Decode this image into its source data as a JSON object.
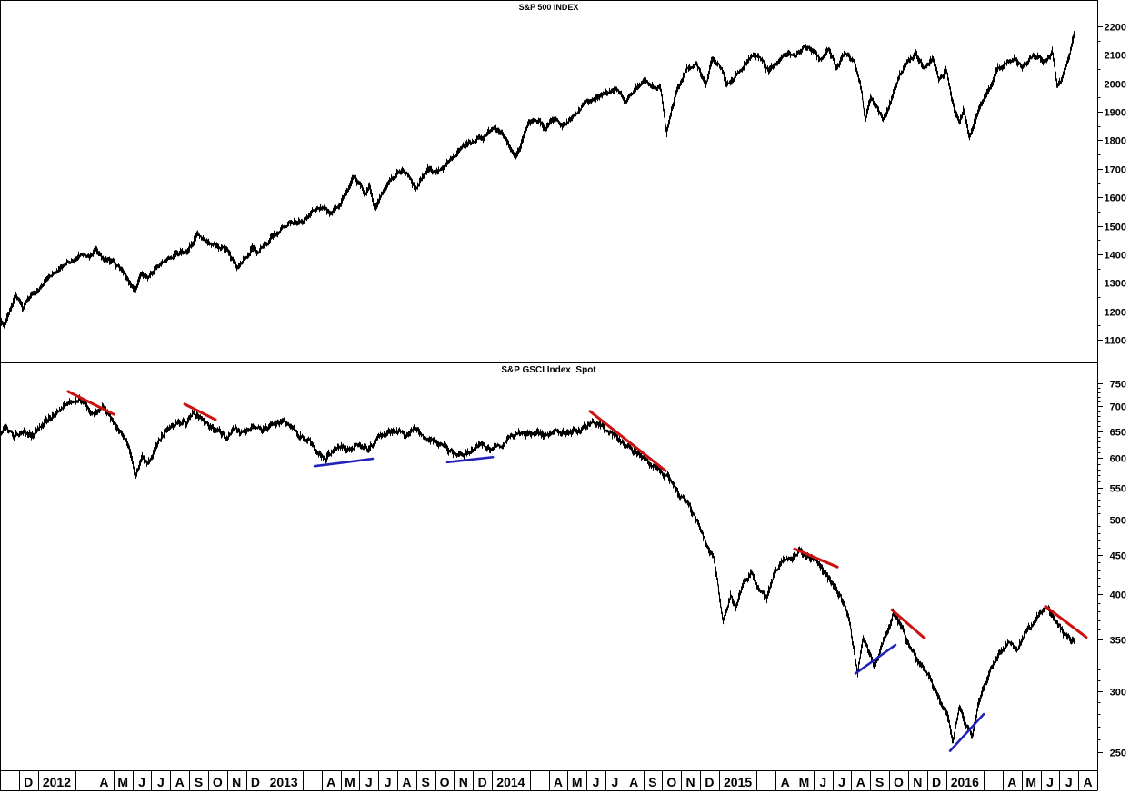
{
  "meta": {
    "background": "#ffffff",
    "axis_color": "#000000",
    "bar_color": "#000000",
    "red_trendline_color": "#cc1111",
    "blue_trendline_color": "#2222bb"
  },
  "x_axis": {
    "description": "Monthly cells from late Nov 2011 to Aug 2016; year label replaces Jan-Feb, following blank cell is Mar",
    "cells": [
      [
        "",
        1
      ],
      [
        "D",
        1
      ],
      [
        "2012",
        2
      ],
      [
        "",
        1
      ],
      [
        "A",
        1
      ],
      [
        "M",
        1
      ],
      [
        "J",
        1
      ],
      [
        "J",
        1
      ],
      [
        "A",
        1
      ],
      [
        "S",
        1
      ],
      [
        "O",
        1
      ],
      [
        "N",
        1
      ],
      [
        "D",
        1
      ],
      [
        "2013",
        2
      ],
      [
        "",
        1
      ],
      [
        "A",
        1
      ],
      [
        "M",
        1
      ],
      [
        "J",
        1
      ],
      [
        "J",
        1
      ],
      [
        "A",
        1
      ],
      [
        "S",
        1
      ],
      [
        "O",
        1
      ],
      [
        "N",
        1
      ],
      [
        "D",
        1
      ],
      [
        "2014",
        2
      ],
      [
        "",
        1
      ],
      [
        "A",
        1
      ],
      [
        "M",
        1
      ],
      [
        "J",
        1
      ],
      [
        "J",
        1
      ],
      [
        "A",
        1
      ],
      [
        "S",
        1
      ],
      [
        "O",
        1
      ],
      [
        "N",
        1
      ],
      [
        "D",
        1
      ],
      [
        "2015",
        2
      ],
      [
        "",
        1
      ],
      [
        "A",
        1
      ],
      [
        "M",
        1
      ],
      [
        "J",
        1
      ],
      [
        "J",
        1
      ],
      [
        "A",
        1
      ],
      [
        "S",
        1
      ],
      [
        "O",
        1
      ],
      [
        "N",
        1
      ],
      [
        "D",
        1
      ],
      [
        "2016",
        2
      ],
      [
        "",
        1
      ],
      [
        "A",
        1
      ],
      [
        "M",
        1
      ],
      [
        "J",
        1
      ],
      [
        "J",
        1
      ],
      [
        "A",
        1
      ]
    ]
  },
  "chart_data": [
    {
      "type": "line",
      "style": "daily hi-lo price bars",
      "title": "S&P 500 INDEX",
      "x_unit": "months since 1 Nov 2011 (fractional)",
      "y_scale": "linear",
      "ylim": [
        1090,
        2255
      ],
      "y_ticks": [
        2200,
        2100,
        2000,
        1900,
        1800,
        1700,
        1600,
        1500,
        1400,
        1300,
        1200,
        1100
      ],
      "y_minor_step": 50,
      "legend": "none",
      "grid": false,
      "anchors": [
        [
          0,
          1168
        ],
        [
          0.2,
          1150
        ],
        [
          0.8,
          1248
        ],
        [
          1.2,
          1210
        ],
        [
          1.6,
          1248
        ],
        [
          2,
          1278
        ],
        [
          2.5,
          1315
        ],
        [
          3,
          1345
        ],
        [
          3.5,
          1368
        ],
        [
          4.4,
          1404
        ],
        [
          4.7,
          1392
        ],
        [
          5.05,
          1419
        ],
        [
          5.5,
          1385
        ],
        [
          6,
          1372
        ],
        [
          6.5,
          1332
        ],
        [
          7.1,
          1268
        ],
        [
          7.5,
          1330
        ],
        [
          7.8,
          1316
        ],
        [
          8.3,
          1358
        ],
        [
          8.8,
          1380
        ],
        [
          9.3,
          1402
        ],
        [
          9.9,
          1412
        ],
        [
          10.4,
          1465
        ],
        [
          10.9,
          1448
        ],
        [
          11.5,
          1432
        ],
        [
          12,
          1412
        ],
        [
          12.5,
          1354
        ],
        [
          13,
          1398
        ],
        [
          13.3,
          1420
        ],
        [
          13.6,
          1402
        ],
        [
          14,
          1432
        ],
        [
          14.5,
          1470
        ],
        [
          15,
          1498
        ],
        [
          15.5,
          1512
        ],
        [
          16,
          1522
        ],
        [
          16.5,
          1552
        ],
        [
          17.1,
          1565
        ],
        [
          17.4,
          1542
        ],
        [
          18,
          1588
        ],
        [
          18.7,
          1665
        ],
        [
          19.3,
          1612
        ],
        [
          19.5,
          1640
        ],
        [
          19.8,
          1565
        ],
        [
          20.5,
          1650
        ],
        [
          21.1,
          1697
        ],
        [
          21.5,
          1682
        ],
        [
          22,
          1632
        ],
        [
          22.6,
          1705
        ],
        [
          23,
          1680
        ],
        [
          23.5,
          1698
        ],
        [
          24,
          1745
        ],
        [
          24.5,
          1780
        ],
        [
          25,
          1798
        ],
        [
          25.5,
          1808
        ],
        [
          26.1,
          1846
        ],
        [
          26.5,
          1820
        ],
        [
          27.2,
          1742
        ],
        [
          27.9,
          1854
        ],
        [
          28.5,
          1872
        ],
        [
          28.8,
          1842
        ],
        [
          29.3,
          1880
        ],
        [
          29.7,
          1856
        ],
        [
          30.3,
          1884
        ],
        [
          30.8,
          1920
        ],
        [
          31.5,
          1950
        ],
        [
          32.1,
          1968
        ],
        [
          32.5,
          1978
        ],
        [
          33.1,
          1932
        ],
        [
          33.7,
          1988
        ],
        [
          34.1,
          2005
        ],
        [
          34.5,
          1988
        ],
        [
          34.9,
          1978
        ],
        [
          35.2,
          1822
        ],
        [
          35.7,
          1962
        ],
        [
          36.3,
          2048
        ],
        [
          36.8,
          2072
        ],
        [
          37.3,
          1988
        ],
        [
          37.6,
          2082
        ],
        [
          38.1,
          2056
        ],
        [
          38.4,
          1992
        ],
        [
          38.8,
          2022
        ],
        [
          39.3,
          2064
        ],
        [
          39.8,
          2110
        ],
        [
          40.3,
          2076
        ],
        [
          40.6,
          2042
        ],
        [
          41,
          2070
        ],
        [
          41.5,
          2108
        ],
        [
          42,
          2092
        ],
        [
          42.5,
          2126
        ],
        [
          43,
          2108
        ],
        [
          43.4,
          2076
        ],
        [
          43.8,
          2122
        ],
        [
          44.2,
          2052
        ],
        [
          44.6,
          2108
        ],
        [
          45.1,
          2082
        ],
        [
          45.5,
          1988
        ],
        [
          45.72,
          1867
        ],
        [
          46,
          1952
        ],
        [
          46.35,
          1920
        ],
        [
          46.65,
          1872
        ],
        [
          47,
          1925
        ],
        [
          47.5,
          2020
        ],
        [
          48,
          2078
        ],
        [
          48.4,
          2104
        ],
        [
          48.8,
          2050
        ],
        [
          49.3,
          2088
        ],
        [
          49.6,
          2008
        ],
        [
          50,
          2044
        ],
        [
          50.4,
          1918
        ],
        [
          50.7,
          1868
        ],
        [
          50.9,
          1908
        ],
        [
          51.2,
          1812
        ],
        [
          51.5,
          1864
        ],
        [
          51.8,
          1920
        ],
        [
          52.3,
          1986
        ],
        [
          52.7,
          2050
        ],
        [
          53.2,
          2066
        ],
        [
          53.6,
          2092
        ],
        [
          54,
          2058
        ],
        [
          54.4,
          2086
        ],
        [
          54.8,
          2098
        ],
        [
          55.2,
          2076
        ],
        [
          55.6,
          2112
        ],
        [
          55.85,
          1998
        ],
        [
          56.1,
          2012
        ],
        [
          56.5,
          2098
        ],
        [
          56.75,
          2168
        ],
        [
          56.8,
          2178
        ]
      ],
      "trendlines": {
        "red": [],
        "blue": []
      }
    },
    {
      "type": "line",
      "style": "daily hi-lo price bars",
      "title": "S&P GSCI Index  Spot",
      "x_unit": "months since 1 Nov 2011 (fractional)",
      "y_scale": "log",
      "ylim": [
        245,
        760
      ],
      "y_ticks": [
        750,
        700,
        650,
        600,
        550,
        500,
        450,
        400,
        350,
        300,
        250
      ],
      "y_minor_step": 10,
      "legend": "none",
      "grid": false,
      "anchors": [
        [
          0,
          648
        ],
        [
          0.3,
          660
        ],
        [
          0.7,
          638
        ],
        [
          1.2,
          655
        ],
        [
          1.7,
          644
        ],
        [
          2.2,
          660
        ],
        [
          2.7,
          678
        ],
        [
          3.2,
          694
        ],
        [
          3.7,
          704
        ],
        [
          4.2,
          715
        ],
        [
          4.6,
          698
        ],
        [
          5.0,
          688
        ],
        [
          5.4,
          699
        ],
        [
          5.8,
          678
        ],
        [
          6.3,
          652
        ],
        [
          6.8,
          618
        ],
        [
          7.15,
          566
        ],
        [
          7.5,
          600
        ],
        [
          7.8,
          586
        ],
        [
          8.3,
          628
        ],
        [
          8.8,
          652
        ],
        [
          9.3,
          668
        ],
        [
          9.8,
          663
        ],
        [
          10.2,
          690
        ],
        [
          10.6,
          678
        ],
        [
          11.0,
          663
        ],
        [
          11.4,
          650
        ],
        [
          11.9,
          641
        ],
        [
          12.4,
          654
        ],
        [
          12.9,
          647
        ],
        [
          13.4,
          660
        ],
        [
          13.9,
          653
        ],
        [
          14.4,
          666
        ],
        [
          14.9,
          670
        ],
        [
          15.3,
          658
        ],
        [
          15.8,
          644
        ],
        [
          16.3,
          634
        ],
        [
          16.8,
          610
        ],
        [
          17.2,
          598
        ],
        [
          17.6,
          613
        ],
        [
          18.0,
          623
        ],
        [
          18.4,
          616
        ],
        [
          18.9,
          626
        ],
        [
          19.4,
          616
        ],
        [
          19.9,
          633
        ],
        [
          20.4,
          648
        ],
        [
          20.9,
          653
        ],
        [
          21.4,
          646
        ],
        [
          21.9,
          656
        ],
        [
          22.4,
          643
        ],
        [
          22.9,
          636
        ],
        [
          23.4,
          628
        ],
        [
          23.9,
          613
        ],
        [
          24.4,
          603
        ],
        [
          24.9,
          616
        ],
        [
          25.4,
          626
        ],
        [
          25.9,
          616
        ],
        [
          26.4,
          626
        ],
        [
          26.9,
          638
        ],
        [
          27.4,
          650
        ],
        [
          27.9,
          643
        ],
        [
          28.4,
          646
        ],
        [
          28.9,
          640
        ],
        [
          29.4,
          653
        ],
        [
          29.9,
          646
        ],
        [
          30.4,
          650
        ],
        [
          30.9,
          658
        ],
        [
          31.3,
          671
        ],
        [
          31.8,
          660
        ],
        [
          32.3,
          646
        ],
        [
          32.8,
          630
        ],
        [
          33.3,
          618
        ],
        [
          33.8,
          606
        ],
        [
          34.3,
          593
        ],
        [
          34.8,
          580
        ],
        [
          35.3,
          566
        ],
        [
          35.8,
          543
        ],
        [
          36.3,
          526
        ],
        [
          36.8,
          498
        ],
        [
          37.3,
          466
        ],
        [
          37.7,
          446
        ],
        [
          38.2,
          368
        ],
        [
          38.6,
          400
        ],
        [
          38.9,
          385
        ],
        [
          39.3,
          415
        ],
        [
          39.7,
          425
        ],
        [
          40.1,
          405
        ],
        [
          40.5,
          395
        ],
        [
          40.9,
          425
        ],
        [
          41.4,
          440
        ],
        [
          41.9,
          448
        ],
        [
          42.2,
          458
        ],
        [
          42.6,
          448
        ],
        [
          43.0,
          444
        ],
        [
          43.4,
          434
        ],
        [
          43.9,
          416
        ],
        [
          44.4,
          400
        ],
        [
          44.9,
          370
        ],
        [
          45.3,
          313
        ],
        [
          45.6,
          348
        ],
        [
          46.0,
          335
        ],
        [
          46.2,
          322
        ],
        [
          46.6,
          345
        ],
        [
          46.9,
          360
        ],
        [
          47.2,
          380
        ],
        [
          47.6,
          362
        ],
        [
          48.0,
          345
        ],
        [
          48.4,
          332
        ],
        [
          48.8,
          322
        ],
        [
          49.2,
          310
        ],
        [
          49.6,
          295
        ],
        [
          50.0,
          284
        ],
        [
          50.35,
          259
        ],
        [
          50.7,
          285
        ],
        [
          51.0,
          272
        ],
        [
          51.35,
          262
        ],
        [
          51.7,
          288
        ],
        [
          52.1,
          308
        ],
        [
          52.5,
          325
        ],
        [
          52.9,
          338
        ],
        [
          53.3,
          346
        ],
        [
          53.7,
          338
        ],
        [
          54.1,
          354
        ],
        [
          54.5,
          364
        ],
        [
          54.9,
          375
        ],
        [
          55.25,
          388
        ],
        [
          55.6,
          375
        ],
        [
          56.0,
          364
        ],
        [
          56.3,
          352
        ],
        [
          56.8,
          349
        ]
      ],
      "trendlines": {
        "red": [
          {
            "from": [
              3.6,
              732
            ],
            "to": [
              6.01,
              684
            ]
          },
          {
            "from": [
              9.76,
              705
            ],
            "to": [
              11.39,
              673
            ]
          },
          {
            "from": [
              31.19,
              690
            ],
            "to": [
              35.18,
              578
            ]
          },
          {
            "from": [
              42.0,
              458
            ],
            "to": [
              44.26,
              434
            ]
          },
          {
            "from": [
              47.14,
              382
            ],
            "to": [
              48.87,
              351
            ]
          },
          {
            "from": [
              55.26,
              386
            ],
            "to": [
              57.42,
              352
            ]
          }
        ],
        "blue": [
          {
            "from": [
              16.63,
              586
            ],
            "to": [
              19.7,
              599
            ]
          },
          {
            "from": [
              23.64,
              593
            ],
            "to": [
              26.05,
              602
            ]
          },
          {
            "from": [
              45.22,
              316
            ],
            "to": [
              47.33,
              344
            ]
          },
          {
            "from": [
              50.22,
              251
            ],
            "to": [
              52.0,
              280
            ]
          }
        ]
      }
    }
  ]
}
